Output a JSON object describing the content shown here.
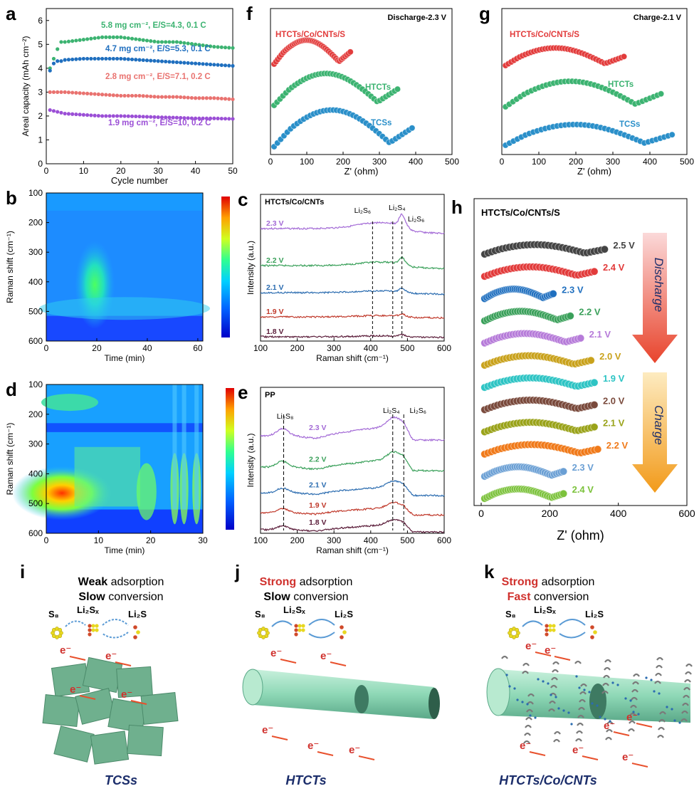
{
  "panel_letters": [
    "a",
    "b",
    "c",
    "d",
    "e",
    "f",
    "g",
    "h",
    "i",
    "j",
    "k"
  ],
  "colors": {
    "green": "#3cb371",
    "blue": "#1f6fbf",
    "salmon": "#e9726f",
    "purple": "#9b4fd6",
    "red": "#e23b3b",
    "teal_blue": "#2a8fc9",
    "bar_discharge_top": "#f7c5c5",
    "bar_discharge_bottom": "#e8442c",
    "bar_charge_top": "#fbe4a8",
    "bar_charge_bottom": "#f29a1a",
    "strong_red": "#d0312d",
    "title_blue": "#1c2e6b"
  },
  "chart_data": [
    {
      "panel": "a",
      "type": "scatter",
      "xlabel": "Cycle number",
      "ylabel": "Areal capacity (mAh cm⁻²)",
      "xlim": [
        0,
        50
      ],
      "ylim": [
        0,
        6.5
      ],
      "xticks": [
        0,
        10,
        20,
        30,
        40,
        50
      ],
      "yticks": [
        0,
        1,
        2,
        3,
        4,
        5,
        6
      ],
      "series": [
        {
          "name": "5.8 mg cm⁻², E/S=4.3, 0.1 C",
          "color": "#3cb371",
          "x": [
            1,
            2,
            3,
            4,
            5,
            10,
            15,
            20,
            25,
            30,
            35,
            40,
            45,
            50
          ],
          "y": [
            4.0,
            4.4,
            4.8,
            5.1,
            5.1,
            5.2,
            5.3,
            5.3,
            5.2,
            5.1,
            5.1,
            5.0,
            4.9,
            4.85
          ]
        },
        {
          "name": "4.7 mg cm⁻², E/S=5.3, 0.1 C",
          "color": "#1f6fbf",
          "x": [
            1,
            2,
            3,
            4,
            5,
            10,
            15,
            20,
            25,
            30,
            35,
            40,
            45,
            50
          ],
          "y": [
            3.9,
            4.2,
            4.3,
            4.3,
            4.35,
            4.4,
            4.4,
            4.4,
            4.35,
            4.3,
            4.25,
            4.2,
            4.15,
            4.1
          ]
        },
        {
          "name": "2.8 mg cm⁻², E/S=7.1, 0.2 C",
          "color": "#e9726f",
          "x": [
            1,
            5,
            10,
            15,
            20,
            25,
            30,
            35,
            40,
            45,
            50
          ],
          "y": [
            3.0,
            3.0,
            2.95,
            2.9,
            2.85,
            2.85,
            2.8,
            2.8,
            2.75,
            2.75,
            2.7
          ]
        },
        {
          "name": "1.9 mg cm⁻², E/S=10, 0.2 C",
          "color": "#9b4fd6",
          "x": [
            1,
            5,
            10,
            15,
            20,
            25,
            30,
            35,
            40,
            45,
            50
          ],
          "y": [
            2.25,
            2.1,
            2.05,
            2.0,
            2.0,
            1.98,
            1.95,
            1.93,
            1.9,
            1.9,
            1.88
          ]
        }
      ]
    },
    {
      "panel": "b",
      "type": "heatmap",
      "xlabel": "Time (min)",
      "ylabel": "Raman shift (cm⁻¹)",
      "xlim": [
        0,
        62
      ],
      "ylim": [
        100,
        600
      ],
      "xticks": [
        0,
        20,
        40,
        60
      ],
      "yticks": [
        100,
        200,
        300,
        400,
        500,
        600
      ]
    },
    {
      "panel": "c",
      "type": "line",
      "title": "HTCTs/Co/CNTs",
      "xlabel": "Raman shift (cm⁻¹)",
      "ylabel": "Intensity (a.u.)",
      "xlim": [
        100,
        600
      ],
      "xticks": [
        100,
        200,
        300,
        400,
        500,
        600
      ],
      "markers": [
        {
          "x": 405,
          "label": "Li₂S₆"
        },
        {
          "x": 460,
          "label": "Li₂S₄"
        },
        {
          "x": 485,
          "label": "Li₂S₆"
        }
      ],
      "series": [
        {
          "name": "2.3 V",
          "color": "#a36ad6"
        },
        {
          "name": "2.2 V",
          "color": "#3aa05a"
        },
        {
          "name": "2.1 V",
          "color": "#2b6cb0"
        },
        {
          "name": "1.9 V",
          "color": "#c0392b"
        },
        {
          "name": "1.8 V",
          "color": "#5b1d3a"
        }
      ]
    },
    {
      "panel": "d",
      "type": "heatmap",
      "xlabel": "Time (min)",
      "ylabel": "Raman shift (cm⁻¹)",
      "xlim": [
        0,
        30
      ],
      "ylim": [
        100,
        600
      ],
      "xticks": [
        0,
        10,
        20,
        30
      ],
      "yticks": [
        100,
        200,
        300,
        400,
        500,
        600
      ]
    },
    {
      "panel": "e",
      "type": "line",
      "title": "PP",
      "xlabel": "Raman shift (cm⁻¹)",
      "ylabel": "Intensity (a.u.)",
      "xlim": [
        100,
        600
      ],
      "xticks": [
        100,
        200,
        300,
        400,
        500,
        600
      ],
      "markers": [
        {
          "x": 163,
          "label": "Li₂S₈"
        },
        {
          "x": 460,
          "label": "Li₂S₄"
        },
        {
          "x": 490,
          "label": "Li₂S₆"
        }
      ],
      "series": [
        {
          "name": "2.3 V",
          "color": "#a36ad6"
        },
        {
          "name": "2.2 V",
          "color": "#3aa05a"
        },
        {
          "name": "2.1 V",
          "color": "#2b6cb0"
        },
        {
          "name": "1.9 V",
          "color": "#c0392b"
        },
        {
          "name": "1.8 V",
          "color": "#5b1d3a"
        }
      ]
    },
    {
      "panel": "f",
      "type": "scatter",
      "title": "Discharge-2.3 V",
      "xlabel": "Z' (ohm)",
      "xlim": [
        0,
        500
      ],
      "xticks": [
        0,
        100,
        200,
        300,
        400,
        500
      ],
      "series": [
        {
          "name": "HTCTs/Co/CNTs/S",
          "color": "#e23b3b",
          "x_end": 220
        },
        {
          "name": "HTCTs",
          "color": "#3cb371",
          "x_end": 350
        },
        {
          "name": "TCSs",
          "color": "#2a8fc9",
          "x_end": 390
        }
      ]
    },
    {
      "panel": "g",
      "type": "scatter",
      "title": "Charge-2.1 V",
      "xlabel": "Z' (ohm)",
      "xlim": [
        0,
        500
      ],
      "xticks": [
        0,
        100,
        200,
        300,
        400,
        500
      ],
      "series": [
        {
          "name": "HTCTs/Co/CNTs/S",
          "color": "#e23b3b",
          "x_end": 330
        },
        {
          "name": "HTCTs",
          "color": "#3cb371",
          "x_end": 430
        },
        {
          "name": "TCSs",
          "color": "#2a8fc9",
          "x_end": 460
        }
      ]
    },
    {
      "panel": "h",
      "type": "scatter",
      "title": "HTCTs/Co/CNTs/S",
      "xlabel": "Z' (ohm)",
      "xlim": [
        0,
        600
      ],
      "xticks": [
        0,
        200,
        400,
        600
      ],
      "arrow_labels": [
        "Discharge",
        "Charge"
      ],
      "series": [
        {
          "name": "2.5 V",
          "color": "#444444",
          "x_end": 360
        },
        {
          "name": "2.4 V",
          "color": "#e23b3b",
          "x_end": 330
        },
        {
          "name": "2.3 V",
          "color": "#1f6fbf",
          "x_end": 210
        },
        {
          "name": "2.2 V",
          "color": "#3aa05a",
          "x_end": 260
        },
        {
          "name": "2.1 V",
          "color": "#b67bd9",
          "x_end": 290
        },
        {
          "name": "2.0 V",
          "color": "#c9a21c",
          "x_end": 320
        },
        {
          "name": "1.9 V",
          "color": "#2ec4c4",
          "x_end": 330
        },
        {
          "name": "2.0 V",
          "color": "#7a4a3c",
          "x_end": 330
        },
        {
          "name": "2.1 V",
          "color": "#9aa31a",
          "x_end": 330
        },
        {
          "name": "2.2 V",
          "color": "#f07a1a",
          "x_end": 340
        },
        {
          "name": "2.3 V",
          "color": "#6a9fd4",
          "x_end": 240
        },
        {
          "name": "2.4 V",
          "color": "#7cc23c",
          "x_end": 240
        }
      ]
    }
  ],
  "schematics": [
    {
      "panel": "i",
      "line1_a": "Weak",
      "line1_b": " adsorption",
      "line2": "Slow conversion",
      "caption": "TCSs",
      "species": [
        "S₈",
        "Li₂Sₓ",
        "Li₂S"
      ],
      "electron": "e⁻"
    },
    {
      "panel": "j",
      "line1_a": "Strong",
      "line1_b": " adsorption",
      "line2": "Slow conversion",
      "caption": "HTCTs",
      "species": [
        "S₈",
        "Li₂Sₓ",
        "Li₂S"
      ],
      "electron": "e⁻"
    },
    {
      "panel": "k",
      "line1_a": "Strong",
      "line1_b": " adsorption",
      "line2": "Fast conversion",
      "caption": "HTCTs/Co/CNTs",
      "species": [
        "S₈",
        "Li₂Sₓ",
        "Li₂S"
      ],
      "electron": "e⁻"
    }
  ]
}
